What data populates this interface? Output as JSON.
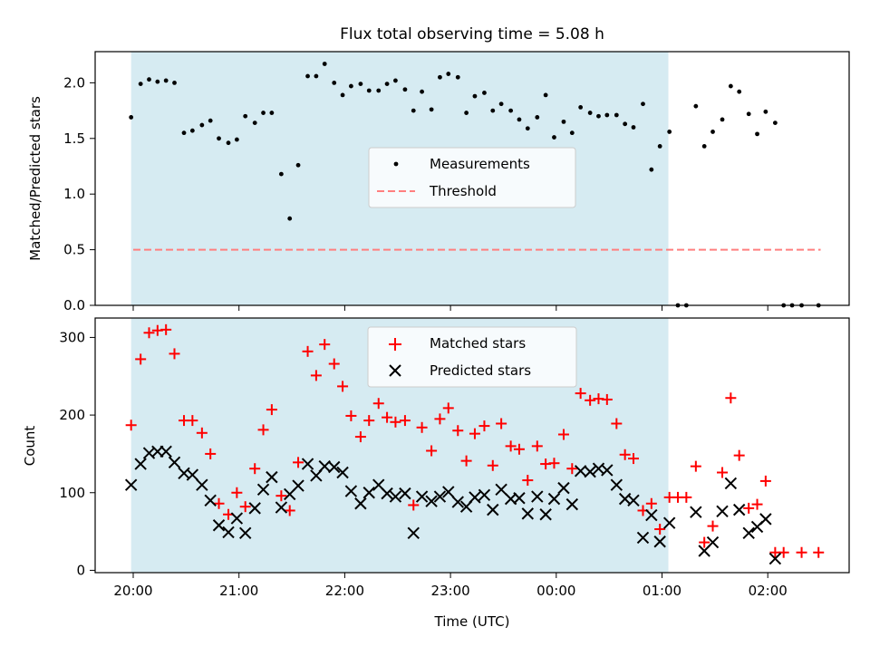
{
  "colors": {
    "observing_shade": "#add8e6",
    "measurement": "#000000",
    "threshold": "#ff7f7f",
    "matched": "#ff0000",
    "predicted": "#000000"
  },
  "chart_data": [
    {
      "type": "scatter",
      "title": "Flux total observing time = 5.08 h",
      "xlabel": "",
      "ylabel": "Matched/Predicted stars",
      "x_ticks": [
        "20:00",
        "21:00",
        "22:00",
        "23:00",
        "00:00",
        "01:00",
        "02:00"
      ],
      "y_ticks": [
        "0.0",
        "0.5",
        "1.0",
        "1.5",
        "2.0"
      ],
      "ylim": [
        0,
        2.28
      ],
      "x_unit": "hours after 20:00 UTC",
      "observing_window": [
        -0.02,
        5.06
      ],
      "threshold": {
        "name": "Threshold",
        "y": 0.5,
        "x_range": [
          0,
          6.5
        ]
      },
      "legend": {
        "entries": [
          "Measurements",
          "Threshold"
        ],
        "placement": "center"
      },
      "series": [
        {
          "name": "Measurements",
          "points": [
            [
              -0.02,
              1.69
            ],
            [
              0.07,
              1.99
            ],
            [
              0.15,
              2.03
            ],
            [
              0.23,
              2.01
            ],
            [
              0.31,
              2.02
            ],
            [
              0.39,
              2.0
            ],
            [
              0.48,
              1.55
            ],
            [
              0.56,
              1.57
            ],
            [
              0.65,
              1.62
            ],
            [
              0.73,
              1.66
            ],
            [
              0.81,
              1.5
            ],
            [
              0.9,
              1.46
            ],
            [
              0.98,
              1.49
            ],
            [
              1.06,
              1.7
            ],
            [
              1.15,
              1.64
            ],
            [
              1.23,
              1.73
            ],
            [
              1.31,
              1.73
            ],
            [
              1.4,
              1.18
            ],
            [
              1.48,
              0.78
            ],
            [
              1.56,
              1.26
            ],
            [
              1.65,
              2.06
            ],
            [
              1.73,
              2.06
            ],
            [
              1.81,
              2.17
            ],
            [
              1.9,
              2.0
            ],
            [
              1.98,
              1.89
            ],
            [
              2.06,
              1.97
            ],
            [
              2.15,
              1.99
            ],
            [
              2.23,
              1.93
            ],
            [
              2.32,
              1.93
            ],
            [
              2.4,
              1.99
            ],
            [
              2.48,
              2.02
            ],
            [
              2.57,
              1.94
            ],
            [
              2.65,
              1.75
            ],
            [
              2.73,
              1.92
            ],
            [
              2.82,
              1.76
            ],
            [
              2.9,
              2.05
            ],
            [
              2.98,
              2.08
            ],
            [
              3.07,
              2.05
            ],
            [
              3.15,
              1.73
            ],
            [
              3.23,
              1.88
            ],
            [
              3.32,
              1.91
            ],
            [
              3.4,
              1.75
            ],
            [
              3.48,
              1.81
            ],
            [
              3.57,
              1.75
            ],
            [
              3.65,
              1.67
            ],
            [
              3.73,
              1.59
            ],
            [
              3.82,
              1.69
            ],
            [
              3.9,
              1.89
            ],
            [
              3.98,
              1.51
            ],
            [
              4.07,
              1.65
            ],
            [
              4.15,
              1.55
            ],
            [
              4.23,
              1.78
            ],
            [
              4.32,
              1.73
            ],
            [
              4.4,
              1.7
            ],
            [
              4.48,
              1.71
            ],
            [
              4.57,
              1.71
            ],
            [
              4.65,
              1.63
            ],
            [
              4.73,
              1.6
            ],
            [
              4.82,
              1.81
            ],
            [
              4.9,
              1.22
            ],
            [
              4.98,
              1.43
            ],
            [
              5.07,
              1.56
            ],
            [
              5.15,
              0.0
            ],
            [
              5.23,
              0.0
            ],
            [
              5.32,
              1.79
            ],
            [
              5.4,
              1.43
            ],
            [
              5.48,
              1.56
            ],
            [
              5.57,
              1.67
            ],
            [
              5.65,
              1.97
            ],
            [
              5.73,
              1.92
            ],
            [
              5.82,
              1.72
            ],
            [
              5.9,
              1.54
            ],
            [
              5.98,
              1.74
            ],
            [
              6.07,
              1.64
            ],
            [
              6.15,
              0.0
            ],
            [
              6.23,
              0.0
            ],
            [
              6.32,
              0.0
            ],
            [
              6.48,
              0.0
            ]
          ]
        }
      ]
    },
    {
      "type": "scatter",
      "title": "",
      "xlabel": "Time (UTC)",
      "ylabel": "Count",
      "x_ticks": [
        "20:00",
        "21:00",
        "22:00",
        "23:00",
        "00:00",
        "01:00",
        "02:00"
      ],
      "y_ticks": [
        "0",
        "100",
        "200",
        "300"
      ],
      "ylim": [
        -3,
        325
      ],
      "x_unit": "hours after 20:00 UTC",
      "observing_window": [
        -0.02,
        5.06
      ],
      "legend": {
        "entries": [
          "Matched stars",
          "Predicted stars"
        ],
        "placement": "upper center"
      },
      "series": [
        {
          "name": "Matched stars",
          "marker": "plus",
          "points": [
            [
              -0.02,
              187
            ],
            [
              0.07,
              272
            ],
            [
              0.15,
              306
            ],
            [
              0.23,
              309
            ],
            [
              0.31,
              310
            ],
            [
              0.39,
              279
            ],
            [
              0.48,
              193
            ],
            [
              0.56,
              193
            ],
            [
              0.65,
              177
            ],
            [
              0.73,
              150
            ],
            [
              0.81,
              86
            ],
            [
              0.9,
              72
            ],
            [
              0.98,
              100
            ],
            [
              1.06,
              82
            ],
            [
              1.15,
              131
            ],
            [
              1.23,
              181
            ],
            [
              1.31,
              207
            ],
            [
              1.4,
              96
            ],
            [
              1.48,
              77
            ],
            [
              1.56,
              139
            ],
            [
              1.65,
              282
            ],
            [
              1.73,
              251
            ],
            [
              1.81,
              291
            ],
            [
              1.9,
              266
            ],
            [
              1.98,
              237
            ],
            [
              2.06,
              199
            ],
            [
              2.15,
              172
            ],
            [
              2.23,
              193
            ],
            [
              2.32,
              215
            ],
            [
              2.4,
              197
            ],
            [
              2.48,
              191
            ],
            [
              2.57,
              193
            ],
            [
              2.65,
              84
            ],
            [
              2.73,
              184
            ],
            [
              2.82,
              154
            ],
            [
              2.9,
              195
            ],
            [
              2.98,
              209
            ],
            [
              3.07,
              180
            ],
            [
              3.15,
              141
            ],
            [
              3.23,
              176
            ],
            [
              3.32,
              186
            ],
            [
              3.4,
              135
            ],
            [
              3.48,
              189
            ],
            [
              3.57,
              160
            ],
            [
              3.65,
              156
            ],
            [
              3.73,
              116
            ],
            [
              3.82,
              160
            ],
            [
              3.9,
              137
            ],
            [
              3.98,
              138
            ],
            [
              4.07,
              175
            ],
            [
              4.15,
              131
            ],
            [
              4.23,
              228
            ],
            [
              4.32,
              219
            ],
            [
              4.4,
              221
            ],
            [
              4.48,
              220
            ],
            [
              4.57,
              189
            ],
            [
              4.65,
              149
            ],
            [
              4.73,
              144
            ],
            [
              4.82,
              77
            ],
            [
              4.9,
              86
            ],
            [
              4.98,
              53
            ],
            [
              5.07,
              94
            ],
            [
              5.15,
              94
            ],
            [
              5.23,
              94
            ],
            [
              5.32,
              134
            ],
            [
              5.4,
              36
            ],
            [
              5.48,
              57
            ],
            [
              5.57,
              126
            ],
            [
              5.65,
              222
            ],
            [
              5.73,
              148
            ],
            [
              5.82,
              80
            ],
            [
              5.9,
              85
            ],
            [
              5.98,
              115
            ],
            [
              6.07,
              23
            ],
            [
              6.15,
              23
            ],
            [
              6.32,
              23
            ],
            [
              6.48,
              23
            ]
          ]
        },
        {
          "name": "Predicted stars",
          "marker": "x",
          "points": [
            [
              -0.02,
              110
            ],
            [
              0.07,
              137
            ],
            [
              0.15,
              151
            ],
            [
              0.23,
              153
            ],
            [
              0.31,
              153
            ],
            [
              0.39,
              139
            ],
            [
              0.48,
              125
            ],
            [
              0.56,
              123
            ],
            [
              0.65,
              110
            ],
            [
              0.73,
              90
            ],
            [
              0.81,
              58
            ],
            [
              0.9,
              49
            ],
            [
              0.98,
              67
            ],
            [
              1.06,
              48
            ],
            [
              1.15,
              80
            ],
            [
              1.23,
              104
            ],
            [
              1.31,
              120
            ],
            [
              1.4,
              81
            ],
            [
              1.48,
              98
            ],
            [
              1.56,
              109
            ],
            [
              1.65,
              137
            ],
            [
              1.73,
              122
            ],
            [
              1.81,
              134
            ],
            [
              1.9,
              133
            ],
            [
              1.98,
              126
            ],
            [
              2.06,
              102
            ],
            [
              2.15,
              86
            ],
            [
              2.23,
              100
            ],
            [
              2.32,
              110
            ],
            [
              2.4,
              99
            ],
            [
              2.48,
              95
            ],
            [
              2.57,
              99
            ],
            [
              2.65,
              48
            ],
            [
              2.73,
              95
            ],
            [
              2.82,
              89
            ],
            [
              2.9,
              95
            ],
            [
              2.98,
              101
            ],
            [
              3.07,
              88
            ],
            [
              3.15,
              82
            ],
            [
              3.23,
              94
            ],
            [
              3.32,
              97
            ],
            [
              3.4,
              78
            ],
            [
              3.48,
              104
            ],
            [
              3.57,
              92
            ],
            [
              3.65,
              93
            ],
            [
              3.73,
              73
            ],
            [
              3.82,
              95
            ],
            [
              3.9,
              72
            ],
            [
              3.98,
              92
            ],
            [
              4.07,
              106
            ],
            [
              4.15,
              85
            ],
            [
              4.23,
              128
            ],
            [
              4.32,
              127
            ],
            [
              4.4,
              131
            ],
            [
              4.48,
              129
            ],
            [
              4.57,
              110
            ],
            [
              4.65,
              92
            ],
            [
              4.73,
              90
            ],
            [
              4.82,
              42
            ],
            [
              4.9,
              71
            ],
            [
              4.98,
              37
            ],
            [
              5.07,
              61
            ],
            [
              5.32,
              75
            ],
            [
              5.4,
              25
            ],
            [
              5.48,
              36
            ],
            [
              5.57,
              76
            ],
            [
              5.65,
              112
            ],
            [
              5.73,
              78
            ],
            [
              5.82,
              48
            ],
            [
              5.9,
              56
            ],
            [
              5.98,
              66
            ],
            [
              6.07,
              15
            ]
          ]
        }
      ]
    }
  ]
}
